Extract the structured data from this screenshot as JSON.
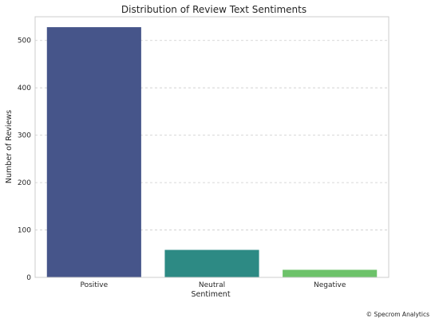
{
  "chart_data": {
    "type": "bar",
    "title": "Distribution of Review Text Sentiments",
    "xlabel": "Sentiment",
    "ylabel": "Number of Reviews",
    "categories": [
      "Positive",
      "Neutral",
      "Negative"
    ],
    "values": [
      528,
      58,
      16
    ],
    "colors": [
      "#46558a",
      "#2d8a84",
      "#6dc26a"
    ],
    "ylim": [
      0,
      550
    ],
    "yticks": [
      0,
      100,
      200,
      300,
      400,
      500
    ],
    "grid": "horizontal-dashed"
  },
  "credit": "© Specrom Analytics"
}
